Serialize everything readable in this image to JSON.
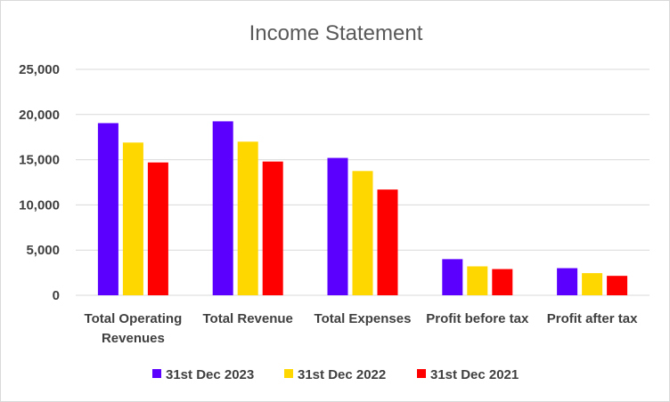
{
  "chart_data": {
    "type": "bar",
    "title": "Income Statement",
    "xlabel": "",
    "ylabel": "",
    "ylim": [
      0,
      25000
    ],
    "yticks": [
      0,
      5000,
      10000,
      15000,
      20000,
      25000
    ],
    "ytick_labels": [
      "0",
      "5,000",
      "10,000",
      "15,000",
      "20,000",
      "25,000"
    ],
    "grid": true,
    "legend_position": "bottom",
    "categories": [
      [
        "Total Operating",
        "Revenues"
      ],
      [
        "Total Revenue"
      ],
      [
        "Total Expenses"
      ],
      [
        "Profit before tax"
      ],
      [
        "Profit after tax"
      ]
    ],
    "series": [
      {
        "name": "31st Dec 2023",
        "color": "#5b00ff",
        "values": [
          19050,
          19250,
          15200,
          4000,
          3000
        ]
      },
      {
        "name": "31st Dec 2022",
        "color": "#ffd700",
        "values": [
          16900,
          17000,
          13750,
          3200,
          2450
        ]
      },
      {
        "name": "31st Dec 2021",
        "color": "#ff0000",
        "values": [
          14700,
          14800,
          11700,
          2900,
          2150
        ]
      }
    ]
  }
}
